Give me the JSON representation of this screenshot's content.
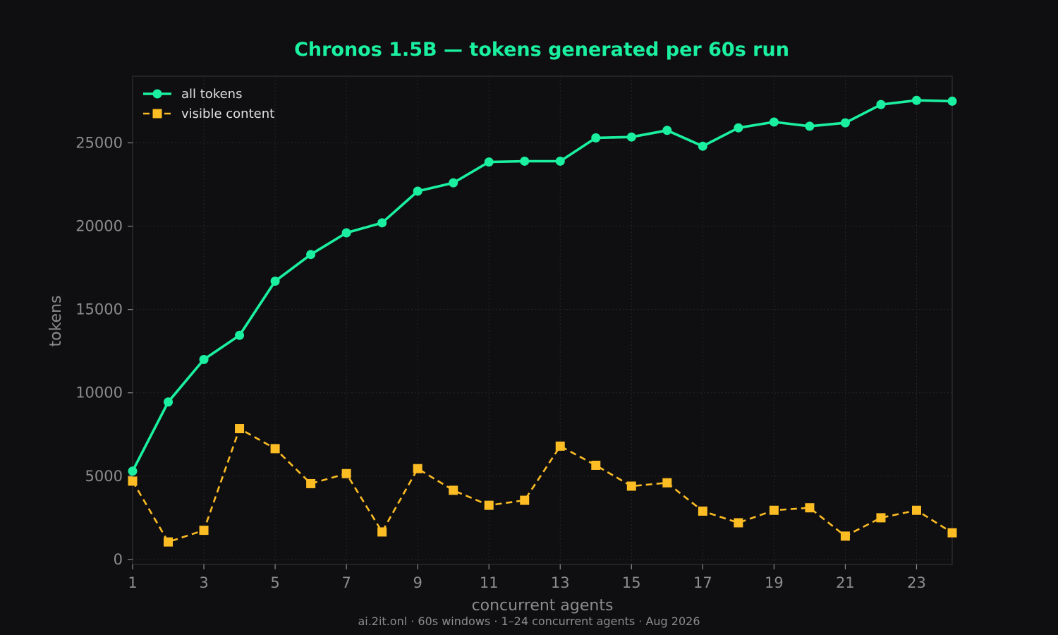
{
  "chart_data": {
    "type": "line",
    "title": "Chronos 1.5B — tokens generated per 60s run",
    "xlabel": "concurrent agents",
    "ylabel": "tokens",
    "x": [
      1,
      2,
      3,
      4,
      5,
      6,
      7,
      8,
      9,
      10,
      11,
      12,
      13,
      14,
      15,
      16,
      17,
      18,
      19,
      20,
      21,
      22,
      23,
      24
    ],
    "xlim": [
      1,
      24
    ],
    "ylim": [
      -300,
      29000
    ],
    "x_ticks": [
      1,
      3,
      5,
      7,
      9,
      11,
      13,
      15,
      17,
      19,
      21,
      23
    ],
    "y_ticks": [
      0,
      5000,
      10000,
      15000,
      20000,
      25000
    ],
    "grid": true,
    "legend_position": "top-left",
    "series": [
      {
        "name": "all tokens",
        "color": "#1af0a0",
        "marker": "circle",
        "line_style": "solid",
        "values": [
          5300,
          9450,
          12000,
          13450,
          16700,
          18300,
          19600,
          20200,
          22100,
          22600,
          23850,
          23900,
          23900,
          25300,
          25350,
          25750,
          24800,
          25900,
          26250,
          26000,
          26200,
          27300,
          27550,
          27500
        ]
      },
      {
        "name": "visible content",
        "color": "#fbbc24",
        "marker": "square",
        "line_style": "dashed",
        "values": [
          4700,
          1050,
          1750,
          7850,
          6650,
          4550,
          5150,
          1650,
          5450,
          4150,
          3250,
          3550,
          6800,
          5650,
          4400,
          4600,
          2900,
          2200,
          2950,
          3100,
          1400,
          2500,
          2950,
          1600
        ]
      }
    ]
  },
  "footer": "ai.2it.onl · 60s windows · 1–24 concurrent agents · Aug 2026",
  "colors": {
    "background": "#0f0f11",
    "title": "#1af0a0",
    "axis_text": "#8c8c8c",
    "legend_text": "#e0e0e0",
    "frame": "#2a2a2e",
    "grid": "#26262a"
  }
}
